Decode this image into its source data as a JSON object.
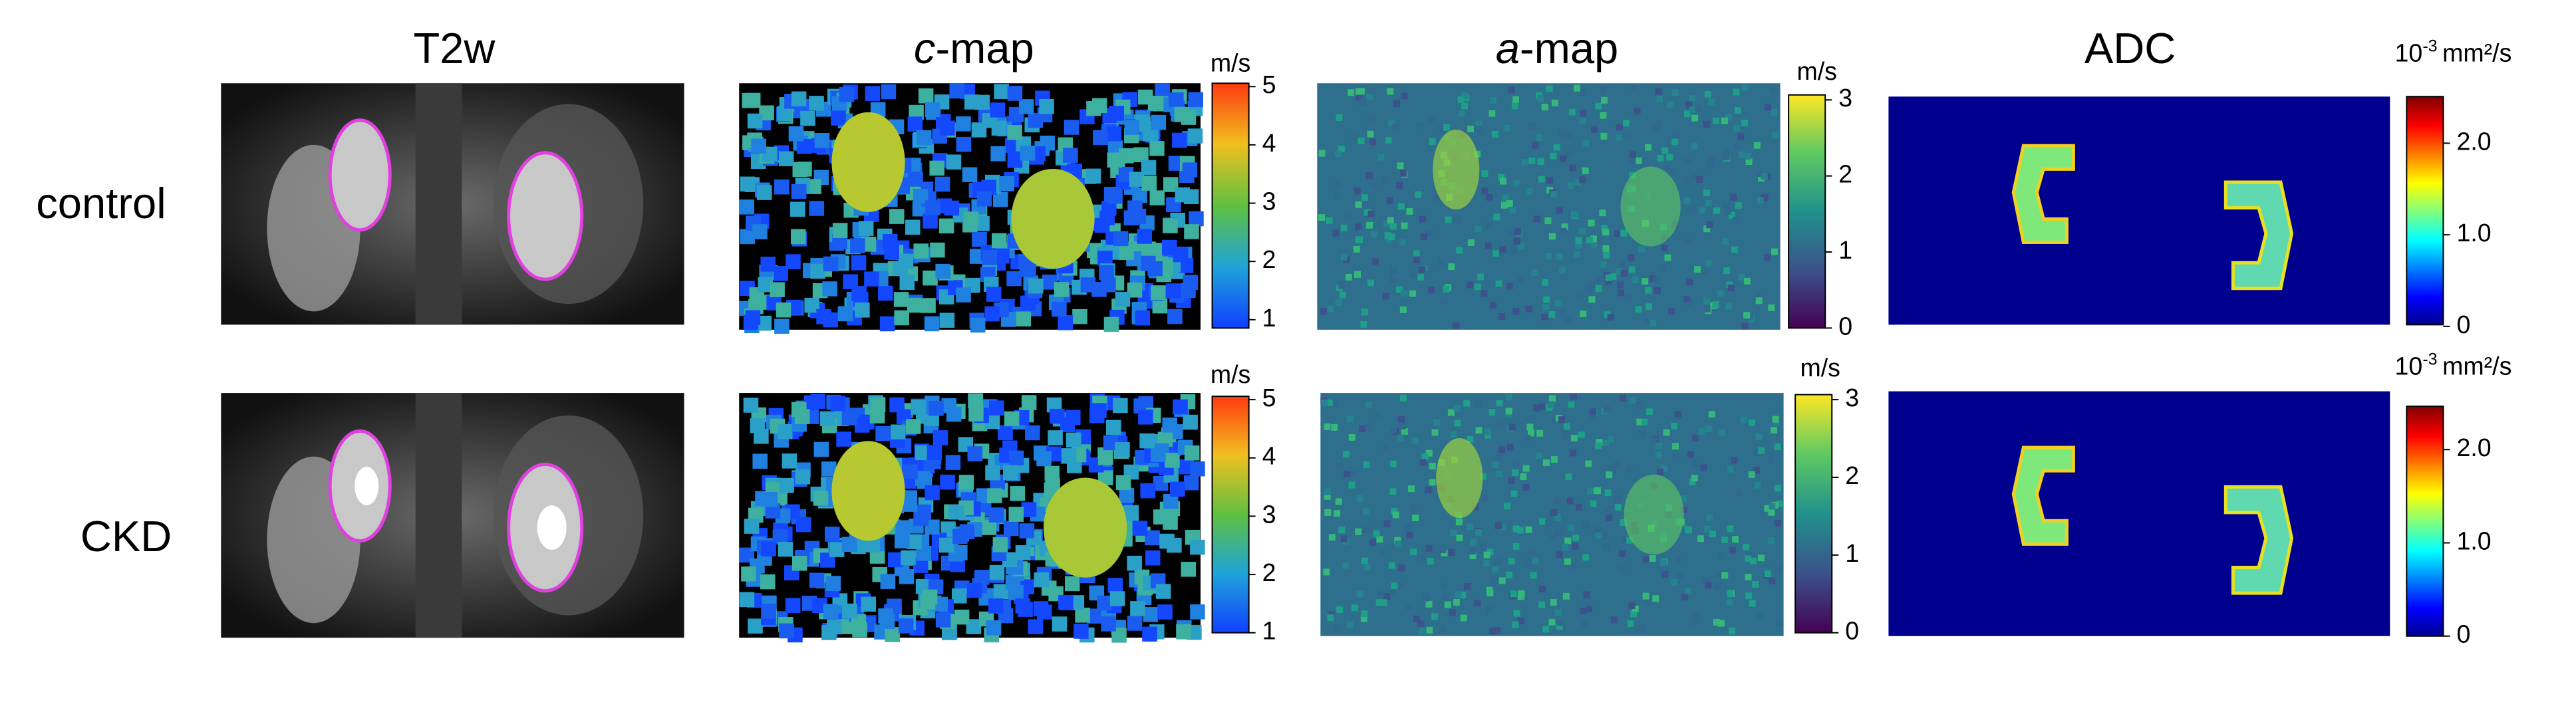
{
  "columns": [
    "T2w",
    {
      "italic": "c",
      "rest": "-map"
    },
    {
      "italic": "a",
      "rest": "-map"
    },
    "ADC"
  ],
  "rows": [
    "control",
    "CKD"
  ],
  "colorbars": [
    {
      "unit": "m/s",
      "ticks": [
        "5",
        "4",
        "3",
        "2",
        "1"
      ]
    },
    {
      "unit": "m/s",
      "ticks": [
        "3",
        "2",
        "1",
        "0"
      ]
    },
    {
      "unit": {
        "base": "10",
        "exponent": "-3",
        "rest": "mm²/s"
      },
      "ticks": [
        "2.0",
        "1.0",
        "0"
      ]
    },
    {
      "unit": "m/s",
      "ticks": [
        "5",
        "4",
        "3",
        "2",
        "1"
      ]
    },
    {
      "unit": "m/s",
      "ticks": [
        "3",
        "2",
        "1",
        "0"
      ]
    },
    {
      "unit": {
        "base": "10",
        "exponent": "-3",
        "rest": "mm²/s"
      },
      "ticks": [
        "2.0",
        "1.0",
        "0"
      ]
    }
  ]
}
